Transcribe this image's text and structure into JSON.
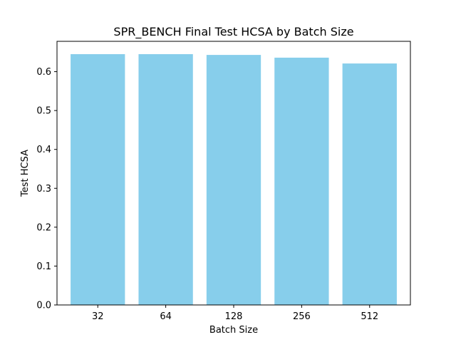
{
  "chart_data": {
    "type": "bar",
    "title": "SPR_BENCH Final Test HCSA by Batch Size",
    "xlabel": "Batch Size",
    "ylabel": "Test HCSA",
    "categories": [
      "32",
      "64",
      "128",
      "256",
      "512"
    ],
    "values": [
      0.645,
      0.645,
      0.643,
      0.636,
      0.621
    ],
    "ylim": [
      0,
      0.678
    ],
    "yticks": [
      0.0,
      0.1,
      0.2,
      0.3,
      0.4,
      0.5,
      0.6
    ],
    "ytick_labels": [
      "0.0",
      "0.1",
      "0.2",
      "0.3",
      "0.4",
      "0.5",
      "0.6"
    ],
    "bar_color": "#87ceeb",
    "grid": false,
    "legend": "none"
  }
}
